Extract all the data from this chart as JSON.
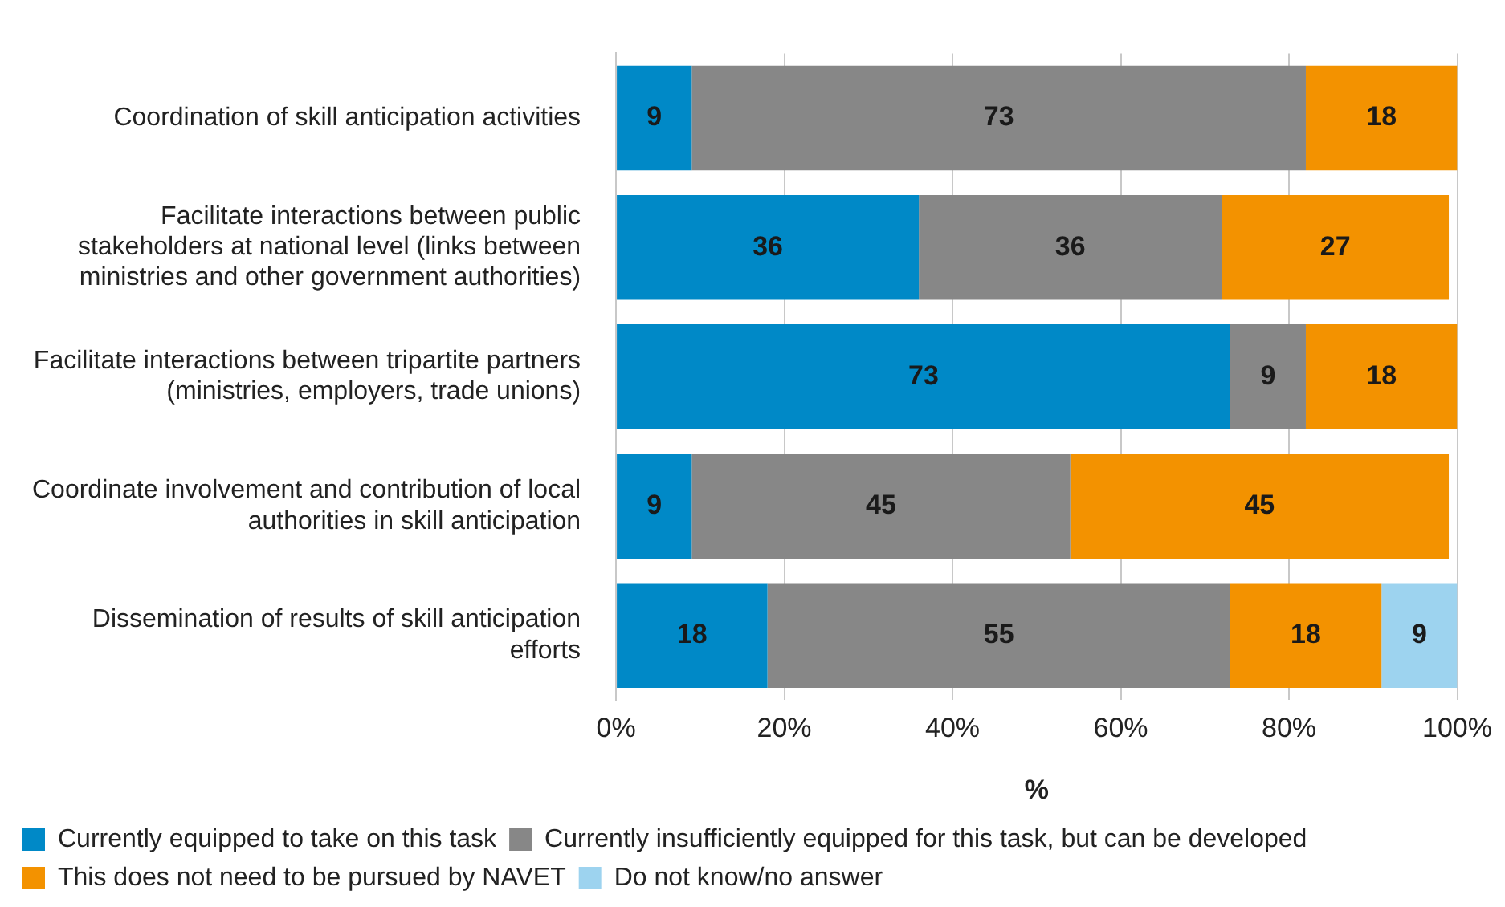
{
  "chart_data": {
    "type": "bar",
    "orientation": "horizontal",
    "stacked": true,
    "xlabel": "%",
    "categories": [
      "Coordination of skill anticipation activities",
      "Facilitate interactions between public stakeholders at national level (links between ministries and other government authorities)",
      "Facilitate interactions between tripartite partners (ministries, employers, trade unions)",
      "Coordinate involvement and contribution of local authorities in skill anticipation",
      "Dissemination of results of skill anticipation efforts"
    ],
    "series": [
      {
        "name": "Currently equipped to take on this task",
        "color": "#0089c7",
        "values": [
          9,
          36,
          73,
          9,
          18
        ]
      },
      {
        "name": "Currently insufficiently equipped for this task, but can be developed",
        "color": "#878787",
        "values": [
          73,
          36,
          9,
          45,
          55
        ]
      },
      {
        "name": "This does not need to be pursued by NAVET",
        "color": "#f39200",
        "values": [
          18,
          27,
          18,
          45,
          18
        ]
      },
      {
        "name": "Do not know/no answer",
        "color": "#9dd3ef",
        "values": [
          null,
          null,
          null,
          null,
          9
        ]
      }
    ],
    "xlim": [
      0,
      100
    ],
    "xticks": [
      {
        "value": 0,
        "label": "0%"
      },
      {
        "value": 20,
        "label": "20%"
      },
      {
        "value": 40,
        "label": "40%"
      },
      {
        "value": 60,
        "label": "60%"
      },
      {
        "value": 80,
        "label": "80%"
      },
      {
        "value": 100,
        "label": "100%"
      }
    ],
    "grid": "x",
    "legend": "bottom",
    "data_labels": true
  }
}
